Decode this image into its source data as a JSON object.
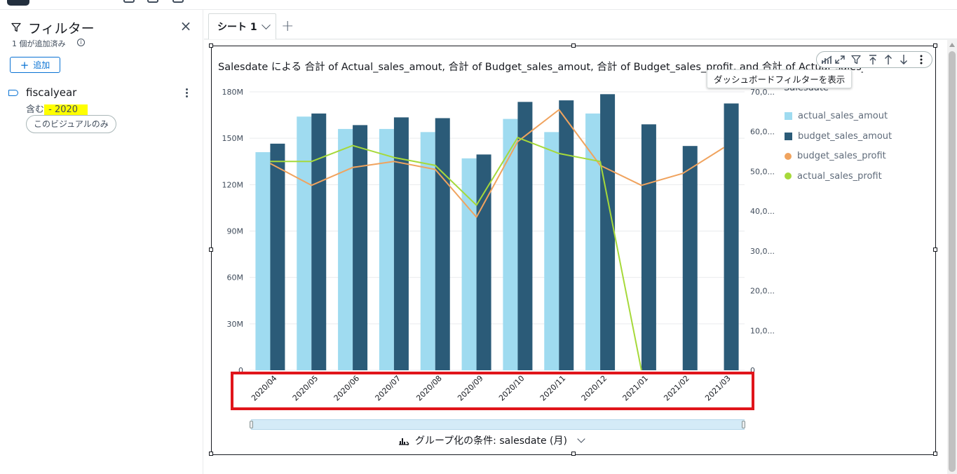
{
  "filter_panel": {
    "title": "フィルター",
    "count_label": "1 個が追加済み",
    "info_icon": "i",
    "add_button": "追加",
    "close_icon": "×",
    "filter_item": {
      "name": "fiscalyear",
      "condition_prefix": "含む",
      "condition_value": " - 2020",
      "scope_chip": "このビジュアルのみ"
    }
  },
  "tabs": [
    {
      "label": "シート 1"
    }
  ],
  "add_tab_icon": "+",
  "visual": {
    "title": "Salesdate による 合計 of Actual_sales_amout, 合計 of Budget_sales_amout, 合計 of Budget_sales_profit, and 合計 of Actual_sales_profit",
    "tooltip": "ダッシュボードフィルターを表示",
    "group_by_label": "グループ化の条件: salesdate (月)"
  },
  "chart_data": {
    "type": "bar",
    "categories": [
      "2020/04",
      "2020/05",
      "2020/06",
      "2020/07",
      "2020/08",
      "2020/09",
      "2020/10",
      "2020/11",
      "2020/12",
      "2021/01",
      "2021/02",
      "2021/03"
    ],
    "legend_title": "Salesdate",
    "legend_placement": "right",
    "grid": true,
    "y_left": {
      "ticks": [
        "0",
        "30M",
        "60M",
        "90M",
        "120M",
        "150M",
        "180M"
      ],
      "ylim": [
        0,
        180000000
      ]
    },
    "y_right": {
      "ticks": [
        "0",
        "10,0...",
        "20,0...",
        "30,0...",
        "40,0...",
        "50,0...",
        "60,0...",
        "70,0..."
      ],
      "ylim": [
        0,
        70000
      ]
    },
    "series": [
      {
        "name": "actual_sales_amout",
        "type": "bar",
        "axis": "left",
        "color": "#9fdbf0",
        "values": [
          141000000,
          164000000,
          156000000,
          156000000,
          154000000,
          137000000,
          162500000,
          154000000,
          166000000,
          null,
          null,
          null
        ]
      },
      {
        "name": "budget_sales_amout",
        "type": "bar",
        "axis": "left",
        "color": "#2b5b78",
        "values": [
          146500000,
          166000000,
          158500000,
          163500000,
          163000000,
          139500000,
          173500000,
          174500000,
          178500000,
          159000000,
          145000000,
          172500000
        ]
      },
      {
        "name": "budget_sales_profit",
        "type": "line",
        "axis": "right",
        "color": "#f0a35e",
        "values": [
          52000,
          46500,
          51000,
          52500,
          50500,
          38500,
          57500,
          65500,
          51500,
          46500,
          49500,
          56000
        ]
      },
      {
        "name": "actual_sales_profit",
        "type": "line",
        "axis": "right",
        "color": "#a6d93a",
        "values": [
          52500,
          52500,
          56500,
          53500,
          51500,
          41500,
          58500,
          54500,
          52500,
          0,
          null,
          null
        ]
      }
    ]
  }
}
